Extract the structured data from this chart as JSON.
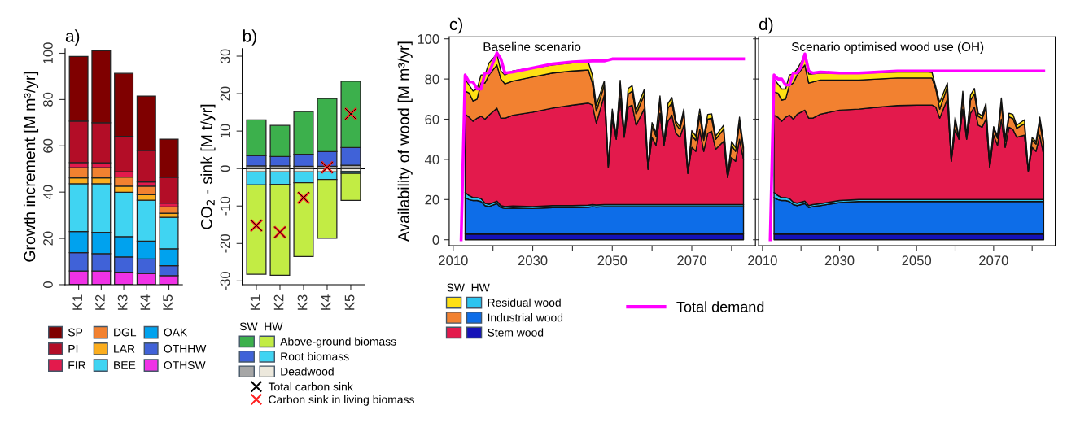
{
  "chart_data": [
    {
      "type": "bar",
      "title": "a)",
      "ylabel": "Growth increment [M m³/yr]",
      "categories": [
        "K1",
        "K2",
        "K3",
        "K4",
        "K5"
      ],
      "stacked": true,
      "ylim": [
        0,
        102
      ],
      "yticks": [
        0,
        20,
        40,
        60,
        80,
        100
      ],
      "legend": "bottom",
      "series": [
        {
          "name": "OTHSW",
          "color": "#f032e6",
          "values": [
            5.9,
            5.9,
            5.4,
            4.9,
            3.9
          ]
        },
        {
          "name": "OTHHW",
          "color": "#4062d8",
          "values": [
            7.9,
            7.5,
            6.6,
            6.2,
            4.3
          ]
        },
        {
          "name": "OAK",
          "color": "#00a2ee",
          "values": [
            9.2,
            9.2,
            8.8,
            7.7,
            7.3
          ]
        },
        {
          "name": "BEE",
          "color": "#40d4f2",
          "values": [
            20.6,
            21.0,
            19.1,
            17.7,
            13.6
          ]
        },
        {
          "name": "LAR",
          "color": "#fbad1e",
          "values": [
            2.6,
            2.6,
            2.7,
            2.4,
            1.8
          ]
        },
        {
          "name": "DGL",
          "color": "#f28130",
          "values": [
            4.4,
            4.4,
            3.9,
            3.7,
            2.7
          ]
        },
        {
          "name": "FIR",
          "color": "#e31a4c",
          "values": [
            2.2,
            2.1,
            2.3,
            1.8,
            1.7
          ]
        },
        {
          "name": "PI",
          "color": "#b30d27",
          "values": [
            17.9,
            17.3,
            15.3,
            13.6,
            11.1
          ]
        },
        {
          "name": "SP",
          "color": "#7f0000",
          "values": [
            27.9,
            31.1,
            27.2,
            23.5,
            16.5
          ]
        }
      ]
    },
    {
      "type": "bar",
      "title": "b)",
      "ylabel": "CO$_{2}$ - sink [M t/yr]",
      "categories": [
        "K1",
        "K2",
        "K3",
        "K4",
        "K5"
      ],
      "stacked": true,
      "ylim": [
        -31,
        32
      ],
      "yticks": [
        -30,
        -20,
        -10,
        0,
        10,
        20,
        30
      ],
      "legend": "bottom",
      "legend_title": "SW  HW",
      "ref_lines": [
        {
          "axis": "y",
          "value": 0,
          "color": "#000000"
        }
      ],
      "series": [
        {
          "name": "Deadwood",
          "color": "#ece8dc",
          "values": [
            -0.9,
            -0.9,
            -0.9,
            -0.9,
            -0.8
          ]
        },
        {
          "name": "Root biomass",
          "color": "#40d4f2",
          "values": [
            -3.5,
            -3.4,
            -2.9,
            -2.0,
            -0.5
          ]
        },
        {
          "name": "Above-ground biomass",
          "color": "#c2ec44",
          "values": [
            -23.8,
            -24.2,
            -19.7,
            -15.7,
            -7.2
          ]
        },
        {
          "color": "#a6a6a6",
          "values": [
            0.7,
            0.7,
            0.6,
            0.6,
            0.9
          ]
        },
        {
          "color": "#4062d8",
          "values": [
            2.8,
            2.5,
            3.2,
            3.9,
            4.7
          ]
        },
        {
          "color": "#3cb04c",
          "values": [
            9.5,
            8.3,
            11.4,
            14.2,
            17.7
          ]
        },
        {
          "type": "scatter",
          "marker": "cross",
          "name": "Carbon sink in living biomass",
          "color": "#ff2020",
          "x": [
            "K1",
            "K2",
            "K3",
            "K4",
            "K5"
          ],
          "values": [
            -15.2,
            -17.0,
            -7.8,
            0.3,
            14.6
          ]
        },
        {
          "type": "scatter",
          "marker": "cross",
          "name": "Total carbon sink",
          "color": "#000000",
          "x": [
            "K1",
            "K2",
            "K3",
            "K4",
            "K5"
          ],
          "values": [
            -15.2,
            -17.0,
            -7.8,
            0.3,
            14.6
          ]
        }
      ]
    },
    {
      "type": "area",
      "title": "c)",
      "subtitle": "Baseline scenario",
      "ylabel": "Availability of wood [M m³/yr]",
      "stacked": true,
      "legend": "bottom",
      "legend_title": "SW  HW",
      "xlim": [
        2009,
        2086
      ],
      "xticks": [
        2010,
        {
          "value": 2020,
          "label": null
        },
        2030,
        {
          "value": 2040,
          "label": null
        },
        2050,
        {
          "value": 2060,
          "label": null
        },
        2070,
        {
          "value": 2080,
          "label": null
        }
      ],
      "ylim": [
        -3,
        101
      ],
      "yticks": [
        0,
        20,
        40,
        60,
        80,
        100
      ],
      "x": [
        2013,
        2014,
        2015,
        2016,
        2017,
        2018,
        2019,
        2021,
        2022,
        2023,
        2025,
        2030,
        2035,
        2040,
        2044,
        2045,
        2046,
        2048,
        2049,
        2050,
        2051,
        2052,
        2053,
        2054,
        2055,
        2056,
        2058,
        2059,
        2060,
        2061,
        2062,
        2063,
        2064,
        2065,
        2066,
        2067,
        2068,
        2069,
        2070,
        2071,
        2072,
        2073,
        2074,
        2075,
        2076,
        2078,
        2079,
        2080,
        2081,
        2082,
        2083
      ],
      "series": [
        {
          "name": "Stem wood",
          "color": "#1512b8",
          "values": [
            2.8,
            2.8,
            2.8,
            2.8,
            2.8,
            2.8,
            2.8,
            2.8,
            2.8,
            2.8,
            2.8,
            2.8,
            2.8,
            2.8,
            2.8,
            2.8,
            2.8,
            2.8,
            2.8,
            2.8,
            2.8,
            2.8,
            2.8,
            2.8,
            2.8,
            2.8,
            2.8,
            2.8,
            2.8,
            2.8,
            2.8,
            2.8,
            2.8,
            2.8,
            2.8,
            2.8,
            2.8,
            2.8,
            2.8,
            2.8,
            2.8,
            2.8,
            2.8,
            2.8,
            2.8,
            2.8,
            2.8,
            2.8,
            2.8,
            2.8,
            2.8
          ]
        },
        {
          "name": "Industrial wood",
          "color": "#0d6de8",
          "values": [
            18.2,
            17.2,
            16.7,
            16.7,
            16.2,
            14.2,
            13.7,
            15.2,
            13.2,
            12.7,
            13.0,
            12.7,
            13.2,
            13.2,
            13.4,
            13.7,
            13.5,
            13.7,
            13.7,
            13.7,
            13.7,
            13.7,
            13.7,
            13.7,
            13.7,
            13.7,
            13.7,
            13.7,
            13.7,
            13.7,
            13.7,
            13.7,
            13.7,
            13.7,
            13.7,
            13.7,
            13.7,
            13.7,
            13.7,
            13.7,
            13.7,
            13.7,
            13.7,
            13.7,
            13.7,
            13.7,
            13.7,
            13.7,
            13.7,
            13.7,
            13.7
          ]
        },
        {
          "name": "Residual wood",
          "color": "#2cc4ef",
          "values": [
            2.5,
            2.0,
            1.5,
            1.5,
            1.5,
            1.2,
            1.2,
            1.2,
            1.0,
            1.0,
            1.0,
            1.0,
            1.0,
            1.0,
            1.0,
            1.0,
            1.0,
            1.0,
            1.0,
            1.0,
            1.0,
            1.0,
            1.0,
            1.0,
            1.0,
            1.0,
            1.0,
            1.0,
            1.0,
            1.0,
            1.0,
            1.0,
            1.0,
            1.0,
            1.0,
            1.0,
            1.0,
            1.0,
            1.0,
            1.0,
            1.0,
            1.0,
            1.0,
            1.0,
            1.0,
            1.0,
            1.0,
            1.0,
            1.0,
            1.0,
            1.0
          ]
        },
        {
          "color": "#e31a4c",
          "values": [
            39.0,
            39.0,
            38.0,
            39.5,
            41.0,
            41.8,
            44.3,
            46.3,
            43.5,
            44.0,
            45.2,
            47.0,
            48.5,
            50.0,
            50.8,
            49.5,
            40.7,
            54.5,
            18.5,
            42.5,
            32.5,
            52.5,
            33.5,
            48.5,
            49.5,
            39.5,
            47.5,
            17.5,
            33.5,
            29.5,
            45.5,
            29.5,
            41.5,
            44.5,
            35.5,
            33.5,
            39.5,
            15.5,
            28.5,
            26.5,
            37.5,
            26.5,
            35.5,
            36.5,
            27.5,
            31.5,
            13.5,
            23.5,
            21.5,
            32.5,
            22.5
          ]
        },
        {
          "color": "#f28130",
          "values": [
            11.5,
            12,
            10,
            9.5,
            16.5,
            18,
            20,
            21.5,
            19.5,
            17.1,
            17,
            17.5,
            17.5,
            17,
            16.5,
            11,
            6,
            5,
            0.7,
            3.5,
            1.2,
            7,
            1.2,
            6.5,
            7,
            5.5,
            7,
            0.7,
            5.5,
            4.5,
            6.5,
            0.9,
            6.5,
            6,
            4.5,
            4,
            6,
            0.7,
            6,
            5.5,
            7,
            5.5,
            7,
            6.5,
            5,
            6,
            0.1,
            6,
            5,
            8,
            4.5
          ]
        },
        {
          "color": "#ffe014",
          "values": [
            6,
            4,
            5,
            5,
            4,
            4,
            6,
            5.4,
            4,
            4.4,
            5,
            4.5,
            4,
            4,
            3.8,
            4,
            3,
            2,
            0.3,
            1.5,
            0.4,
            2.4,
            0.4,
            2.8,
            2.7,
            2,
            2.6,
            0.3,
            1.8,
            1.5,
            2.1,
            0.3,
            2.3,
            2.8,
            1.5,
            1.3,
            2.1,
            0.3,
            2.3,
            2.1,
            3,
            2.1,
            2.4,
            2.2,
            1.6,
            2,
            0.1,
            1.9,
            1.9,
            3,
            1.5
          ]
        },
        {
          "type": "line",
          "name": "Total demand",
          "color": "#ff00ff",
          "x": [
            2012,
            2013,
            2014,
            2015,
            2016,
            2017,
            2018,
            2019,
            2020,
            2021,
            2022,
            2023,
            2025,
            2030,
            2035,
            2040,
            2045,
            2048,
            2050,
            2083
          ],
          "values": [
            0,
            82,
            78.5,
            78.5,
            75,
            75,
            83,
            83,
            88,
            93,
            90,
            83,
            83.5,
            85.5,
            87.5,
            88.5,
            89,
            89,
            90,
            90
          ]
        }
      ]
    },
    {
      "type": "area",
      "title": "d)",
      "subtitle": "Scenario optimised wood use (OH)",
      "stacked": true,
      "tick_labels": "x",
      "xlim": [
        2009,
        2086
      ],
      "xticks": [
        2010,
        {
          "value": 2020,
          "label": null
        },
        2030,
        {
          "value": 2040,
          "label": null
        },
        2050,
        {
          "value": 2060,
          "label": null
        },
        2070,
        {
          "value": 2080,
          "label": null
        }
      ],
      "ylim": [
        -3,
        101
      ],
      "yticks": [
        {
          "value": 0,
          "label": null
        },
        {
          "value": 20,
          "label": null
        },
        {
          "value": 40,
          "label": null
        },
        {
          "value": 60,
          "label": null
        },
        {
          "value": 80,
          "label": null
        },
        {
          "value": 100,
          "label": null
        }
      ],
      "x": [
        2013,
        2014,
        2015,
        2016,
        2017,
        2018,
        2019,
        2021,
        2022,
        2023,
        2025,
        2030,
        2035,
        2040,
        2045,
        2050,
        2053,
        2054,
        2055,
        2056,
        2058,
        2059,
        2060,
        2061,
        2062,
        2063,
        2064,
        2065,
        2066,
        2067,
        2068,
        2069,
        2070,
        2071,
        2072,
        2073,
        2074,
        2075,
        2076,
        2078,
        2079,
        2080,
        2081,
        2082,
        2083
      ],
      "series": [
        {
          "color": "#1512b8",
          "values": [
            2.8,
            2.8,
            2.8,
            2.8,
            2.8,
            2.8,
            2.8,
            2.8,
            2.8,
            2.8,
            2.8,
            2.8,
            2.8,
            2.8,
            2.8,
            2.8,
            2.8,
            2.8,
            2.8,
            2.8,
            2.8,
            2.8,
            2.8,
            2.8,
            2.8,
            2.8,
            2.8,
            2.8,
            2.8,
            2.8,
            2.8,
            2.8,
            2.8,
            2.8,
            2.8,
            2.8,
            2.8,
            2.8,
            2.8,
            2.8,
            2.8,
            2.8,
            2.8,
            2.8,
            2.8
          ]
        },
        {
          "color": "#0d6de8",
          "values": [
            18.2,
            17.2,
            16.7,
            16.7,
            16.2,
            14.7,
            14.2,
            15.2,
            13.2,
            13.7,
            14.2,
            15.7,
            16.2,
            16.2,
            16.2,
            16.2,
            16.2,
            16.2,
            16.2,
            16.2,
            16.2,
            16.2,
            16.2,
            16.2,
            16.2,
            16.2,
            16.2,
            16.2,
            16.2,
            16.2,
            16.2,
            16.2,
            16.2,
            16.2,
            16.2,
            16.2,
            16.2,
            16.2,
            16.2,
            16.2,
            16.2,
            16.2,
            16.2,
            16.2,
            16.2
          ]
        },
        {
          "color": "#2cc4ef",
          "values": [
            2.5,
            2.0,
            1.5,
            1.5,
            1.5,
            1.2,
            1.2,
            1.2,
            1.0,
            1.0,
            1.0,
            1.0,
            1.0,
            1.0,
            1.0,
            1.0,
            1.0,
            1.0,
            1.0,
            1.0,
            1.0,
            1.0,
            1.0,
            1.0,
            1.0,
            1.0,
            1.0,
            1.0,
            1.0,
            1.0,
            1.0,
            1.0,
            1.0,
            1.0,
            1.0,
            1.0,
            1.0,
            1.0,
            1.0,
            1.0,
            1.0,
            1.0,
            1.0,
            1.0,
            1.0
          ]
        },
        {
          "color": "#e31a4c",
          "values": [
            38.5,
            39,
            38,
            40,
            41.5,
            41.3,
            44.3,
            45.3,
            43.5,
            43,
            44.5,
            45,
            45,
            46,
            46.8,
            47,
            47,
            47,
            46,
            40.5,
            50,
            19,
            35,
            30,
            45,
            30,
            43,
            46,
            37,
            36,
            40,
            16,
            32,
            27,
            40,
            26,
            36,
            35,
            31,
            32,
            14,
            26,
            24,
            32,
            22
          ]
        },
        {
          "color": "#f28130",
          "values": [
            11.5,
            12,
            10.5,
            9,
            15,
            18,
            19.5,
            22.5,
            17.5,
            18,
            17,
            15,
            14.5,
            14,
            13.7,
            13.5,
            13.5,
            13.5,
            9,
            4.5,
            6,
            0.2,
            4.5,
            0.7,
            6.5,
            1.2,
            6.5,
            6.5,
            4.5,
            4.2,
            5.8,
            0.4,
            3.2,
            3.5,
            8,
            3.2,
            5.2,
            5.4,
            4.5,
            5.7,
            0.4,
            3.7,
            3.6,
            6.5,
            5
          ]
        },
        {
          "color": "#ffe014",
          "values": [
            6.5,
            4.5,
            5.5,
            5,
            5,
            4.5,
            3,
            4.5,
            4.5,
            4,
            3.5,
            3.5,
            3.5,
            3.2,
            3,
            3,
            3,
            2.8,
            1,
            3.3,
            2,
            0.1,
            1.5,
            0.3,
            2.4,
            0.4,
            2.5,
            2.8,
            1.5,
            1.5,
            2,
            0.2,
            1.1,
            1.1,
            2.6,
            1,
            1.8,
            2,
            1.5,
            2,
            0.2,
            1.2,
            1.2,
            2.5,
            1.8
          ]
        },
        {
          "type": "line",
          "color": "#ff00ff",
          "x": [
            2012,
            2013,
            2014,
            2015,
            2016,
            2017,
            2018,
            2019,
            2020,
            2021,
            2022,
            2023,
            2025,
            2030,
            2035,
            2040,
            2045,
            2050,
            2083
          ],
          "values": [
            0,
            82,
            80,
            80,
            77,
            77,
            83,
            83,
            86,
            92.5,
            84,
            83,
            83.5,
            83,
            83,
            83.5,
            84,
            84,
            84
          ]
        }
      ]
    }
  ]
}
